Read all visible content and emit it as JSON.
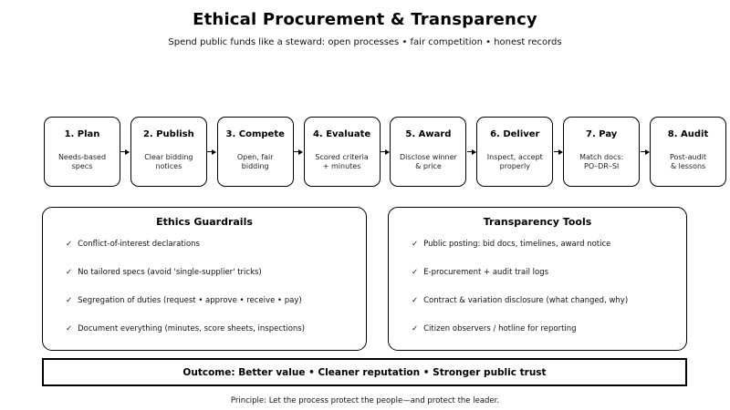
{
  "header": {
    "title": "Ethical Procurement & Transparency",
    "subtitle": "Spend public funds like a steward: open processes • fair competition • honest records"
  },
  "flow": {
    "steps": [
      {
        "label": "1. Plan",
        "desc": "Needs-based\nspecs"
      },
      {
        "label": "2. Publish",
        "desc": "Clear bidding\nnotices"
      },
      {
        "label": "3. Compete",
        "desc": "Open, fair\nbidding"
      },
      {
        "label": "4. Evaluate",
        "desc": "Scored criteria\n+ minutes"
      },
      {
        "label": "5. Award",
        "desc": "Disclose winner\n& price"
      },
      {
        "label": "6. Deliver",
        "desc": "Inspect, accept\nproperly"
      },
      {
        "label": "7. Pay",
        "desc": "Match docs:\nPO–DR–SI"
      },
      {
        "label": "8. Audit",
        "desc": "Post-audit\n& lessons"
      }
    ]
  },
  "panels": [
    {
      "title": "Ethics Guardrails",
      "items": [
        "Conflict-of-interest declarations",
        "No tailored specs (avoid 'single-supplier' tricks)",
        "Segregation of duties (request • approve • receive • pay)",
        "Document everything (minutes, score sheets, inspections)"
      ]
    },
    {
      "title": "Transparency Tools",
      "items": [
        "Public posting: bid docs, timelines, award notice",
        "E-procurement + audit trail logs",
        "Contract & variation disclosure (what changed, why)",
        "Citizen observers / hotline for reporting"
      ]
    }
  ],
  "outcome": "Outcome: Better value • Cleaner reputation • Stronger public trust",
  "principle": "Principle: Let the process protect the people—and protect the leader.",
  "icons": {
    "check": "✓"
  },
  "colors": {
    "ink": "#000000",
    "body_text": "#222222",
    "background": "#ffffff"
  }
}
